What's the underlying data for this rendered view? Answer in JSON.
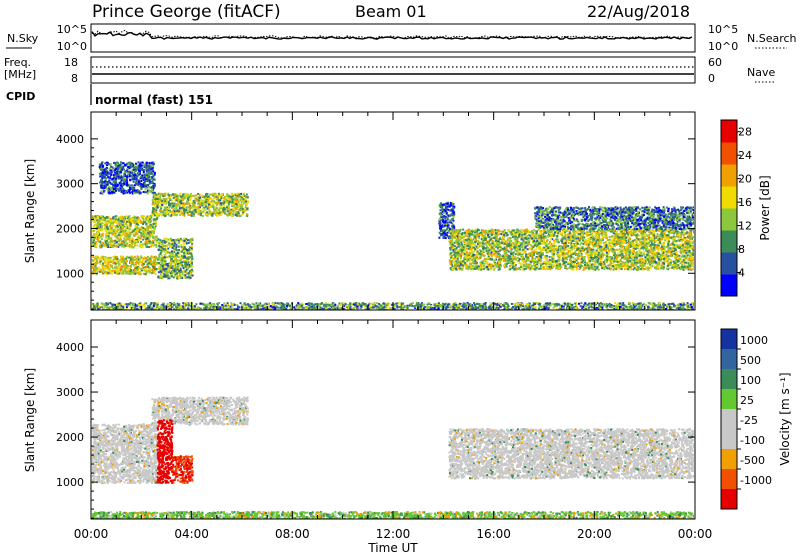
{
  "header": {
    "station": "Prince George (fitACF)",
    "beam": "Beam 01",
    "date": "22/Aug/2018"
  },
  "noise_panel": {
    "left_label": "N.Sky",
    "right_label": "N.Search",
    "left_ticks": [
      "10^5",
      "10^0"
    ],
    "right_ticks": [
      "10^5",
      "10^0"
    ]
  },
  "freq_panel": {
    "left_label_line1": "Freq.",
    "left_label_line2": "[MHz]",
    "right_label": "Nave",
    "left_ticks": [
      "18",
      "8"
    ],
    "right_ticks": [
      "60",
      "0"
    ]
  },
  "cpid_panel": {
    "label": "CPID",
    "program": "normal (fast) 151"
  },
  "x_axis": {
    "label": "Time UT",
    "ticks": [
      "00:00",
      "04:00",
      "08:00",
      "12:00",
      "16:00",
      "20:00",
      "00:00"
    ]
  },
  "colors": {
    "power_scale": [
      "#0000ff",
      "#2850a0",
      "#3c8c5a",
      "#8cc83c",
      "#f0dc00",
      "#f0a000",
      "#f05000",
      "#e60000"
    ],
    "velocity_scale": [
      "#1432a0",
      "#3264a0",
      "#3c8c5a",
      "#64c832",
      "#c8c8c8",
      "#c8c8c8",
      "#f0a000",
      "#f05000",
      "#e60000"
    ]
  },
  "chart_data": [
    {
      "type": "heatmap",
      "panel": "power",
      "ylabel": "Slant Range [km]",
      "y_ticks": [
        "1000",
        "2000",
        "3000",
        "4000"
      ],
      "ylim": [
        180,
        4600
      ],
      "xlim_hours": [
        0,
        24
      ],
      "colorbar_label": "Power [dB]",
      "colorbar_ticks": [
        "4",
        "8",
        "12",
        "16",
        "20",
        "24",
        "28"
      ],
      "colorbar_range": [
        0,
        30
      ],
      "echo_regions": [
        {
          "t": [
            0.0,
            2.6
          ],
          "r": [
            1000,
            1400
          ],
          "level": 16
        },
        {
          "t": [
            0.0,
            2.6
          ],
          "r": [
            1600,
            2300
          ],
          "level": 14
        },
        {
          "t": [
            2.6,
            4.0
          ],
          "r": [
            900,
            1800
          ],
          "level": 12
        },
        {
          "t": [
            2.4,
            6.2
          ],
          "r": [
            2300,
            2800
          ],
          "level": 14
        },
        {
          "t": [
            0.3,
            2.5
          ],
          "r": [
            2800,
            3500
          ],
          "level": 6
        },
        {
          "t": [
            13.8,
            14.4
          ],
          "r": [
            1800,
            2600
          ],
          "level": 6
        },
        {
          "t": [
            14.2,
            24.0
          ],
          "r": [
            1100,
            2000
          ],
          "level": 14
        },
        {
          "t": [
            17.6,
            24.0
          ],
          "r": [
            2000,
            2500
          ],
          "level": 8
        },
        {
          "t": [
            0.0,
            24.0
          ],
          "r": [
            180,
            360
          ],
          "level": 10
        }
      ]
    },
    {
      "type": "heatmap",
      "panel": "velocity",
      "ylabel": "Slant Range [km]",
      "y_ticks": [
        "1000",
        "2000",
        "3000",
        "4000"
      ],
      "ylim": [
        180,
        4600
      ],
      "xlim_hours": [
        0,
        24
      ],
      "colorbar_label": "Velocity [m s⁻¹]",
      "colorbar_ticks": [
        "1000",
        "500",
        "100",
        "25",
        "-25",
        "-100",
        "-500",
        "-1000"
      ],
      "echo_regions": [
        {
          "t": [
            0.0,
            2.6
          ],
          "r": [
            1000,
            2300
          ],
          "velocity": 0
        },
        {
          "t": [
            2.4,
            6.2
          ],
          "r": [
            2300,
            2900
          ],
          "velocity": 0
        },
        {
          "t": [
            2.6,
            3.2
          ],
          "r": [
            1000,
            2400
          ],
          "velocity": -1000
        },
        {
          "t": [
            3.2,
            4.0
          ],
          "r": [
            1000,
            1600
          ],
          "velocity": -500
        },
        {
          "t": [
            14.2,
            24.0
          ],
          "r": [
            1100,
            2200
          ],
          "velocity": 0
        },
        {
          "t": [
            0.0,
            24.0
          ],
          "r": [
            180,
            360
          ],
          "velocity": 100
        }
      ]
    }
  ]
}
